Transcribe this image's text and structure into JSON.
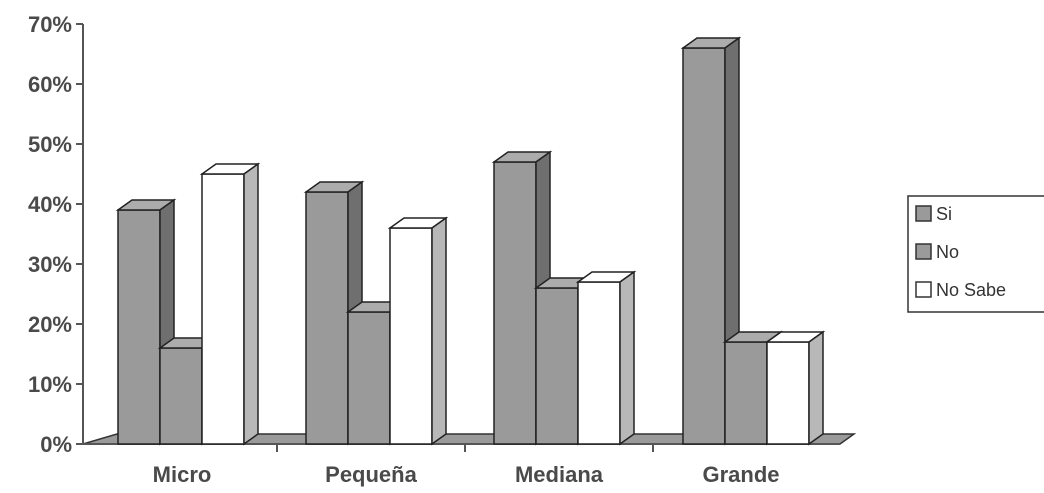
{
  "chart_data": {
    "type": "bar",
    "categories": [
      "Micro",
      "Pequeña",
      "Mediana",
      "Grande"
    ],
    "series": [
      {
        "name": "Si",
        "values": [
          39,
          42,
          47,
          66
        ],
        "color": "#9a9a9a"
      },
      {
        "name": "No",
        "values": [
          16,
          22,
          26,
          17
        ],
        "color": "#9a9a9a"
      },
      {
        "name": "No Sabe",
        "values": [
          45,
          36,
          27,
          17
        ],
        "color": "#ffffff"
      }
    ],
    "y_ticks": [
      "0%",
      "10%",
      "20%",
      "30%",
      "40%",
      "50%",
      "60%",
      "70%"
    ],
    "ylim": [
      0,
      70
    ],
    "grid": false,
    "legend_position": "right",
    "style": "3d-clustered-column"
  }
}
